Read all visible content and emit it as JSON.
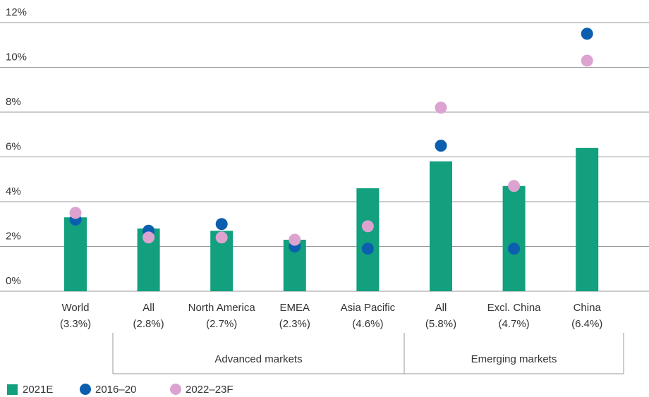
{
  "chart_data": {
    "type": "bar-dot",
    "categories": [
      "World",
      "All",
      "North America",
      "EMEA",
      "Asia Pacific",
      "All",
      "Excl. China",
      "China"
    ],
    "category_labels": [
      "(3.3%)",
      "(2.8%)",
      "(2.7%)",
      "(2.3%)",
      "(4.6%)",
      "(5.8%)",
      "(4.7%)",
      "(6.4%)"
    ],
    "groups": [
      "Advanced markets",
      "Emerging markets"
    ],
    "series": [
      {
        "name": "2021E",
        "kind": "bar",
        "color": "#12a07f",
        "values": [
          3.3,
          2.8,
          2.7,
          2.3,
          4.6,
          5.8,
          4.7,
          6.4
        ]
      },
      {
        "name": "2016–20",
        "kind": "dot",
        "color": "#0b5fae",
        "values": [
          3.2,
          2.7,
          3.0,
          2.0,
          1.9,
          6.5,
          1.9,
          11.5
        ]
      },
      {
        "name": "2022–23F",
        "kind": "dot",
        "color": "#dca3d0",
        "values": [
          3.5,
          2.4,
          2.4,
          2.3,
          2.9,
          8.2,
          4.7,
          10.3
        ]
      }
    ],
    "ylim": [
      0,
      12
    ],
    "yticks": [
      {
        "value": 0,
        "label": "0%"
      },
      {
        "value": 2,
        "label": "2%"
      },
      {
        "value": 4,
        "label": "4%"
      },
      {
        "value": 6,
        "label": "6%"
      },
      {
        "value": 8,
        "label": "8%"
      },
      {
        "value": 10,
        "label": "10%"
      },
      {
        "value": 12,
        "label": "12%"
      }
    ],
    "grid": true
  }
}
